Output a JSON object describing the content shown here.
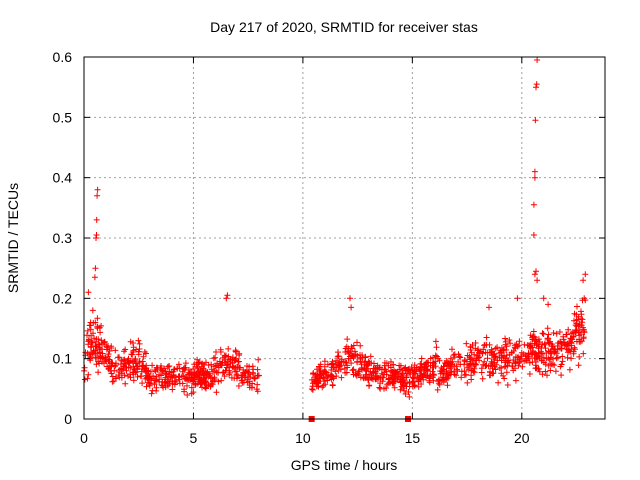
{
  "chart_data": {
    "type": "scatter",
    "title": "Day 217 of 2020, SRMTID for receiver stas",
    "xlabel": "GPS time / hours",
    "ylabel": "SRMTID / TECUs",
    "xlim": [
      0,
      23.8
    ],
    "ylim": [
      0,
      0.6
    ],
    "x_ticks": [
      0,
      5,
      10,
      15,
      20
    ],
    "x_tick_labels": [
      "0",
      "5",
      "10",
      "15",
      "20"
    ],
    "y_ticks": [
      0,
      0.1,
      0.2,
      0.3,
      0.4,
      0.5,
      0.6
    ],
    "y_tick_labels": [
      "0",
      "0.1",
      "0.2",
      "0.3",
      "0.4",
      "0.5",
      "0.6"
    ],
    "grid": true,
    "marker": "+",
    "color": "#ff0000",
    "series": [
      {
        "name": "SRMTID",
        "segments": [
          {
            "t_start": 0.0,
            "t_end": 8.0,
            "baseline": [
              [
                0.0,
                0.1
              ],
              [
                0.3,
                0.12
              ],
              [
                0.6,
                0.13
              ],
              [
                1.0,
                0.1
              ],
              [
                1.5,
                0.08
              ],
              [
                2.0,
                0.09
              ],
              [
                2.5,
                0.1
              ],
              [
                3.0,
                0.07
              ],
              [
                3.5,
                0.07
              ],
              [
                4.0,
                0.07
              ],
              [
                4.5,
                0.07
              ],
              [
                5.0,
                0.07
              ],
              [
                5.5,
                0.07
              ],
              [
                6.0,
                0.08
              ],
              [
                6.5,
                0.1
              ],
              [
                7.0,
                0.09
              ],
              [
                7.5,
                0.07
              ],
              [
                8.0,
                0.07
              ]
            ]
          },
          {
            "t_start": 10.4,
            "t_end": 22.9,
            "baseline": [
              [
                10.4,
                0.06
              ],
              [
                11.0,
                0.07
              ],
              [
                11.5,
                0.08
              ],
              [
                12.0,
                0.11
              ],
              [
                12.5,
                0.1
              ],
              [
                13.0,
                0.08
              ],
              [
                13.5,
                0.07
              ],
              [
                14.0,
                0.07
              ],
              [
                14.5,
                0.07
              ],
              [
                15.0,
                0.07
              ],
              [
                15.5,
                0.08
              ],
              [
                16.0,
                0.09
              ],
              [
                16.5,
                0.08
              ],
              [
                17.0,
                0.09
              ],
              [
                17.5,
                0.09
              ],
              [
                18.0,
                0.1
              ],
              [
                18.5,
                0.1
              ],
              [
                19.0,
                0.1
              ],
              [
                19.5,
                0.1
              ],
              [
                20.0,
                0.1
              ],
              [
                20.5,
                0.11
              ],
              [
                21.0,
                0.11
              ],
              [
                21.5,
                0.11
              ],
              [
                22.0,
                0.12
              ],
              [
                22.5,
                0.14
              ],
              [
                22.9,
                0.16
              ]
            ]
          }
        ],
        "spikes": [
          {
            "x": 0.3,
            "y": 0.16
          },
          {
            "x": 0.4,
            "y": 0.18
          },
          {
            "x": 0.5,
            "y": 0.235
          },
          {
            "x": 0.52,
            "y": 0.25
          },
          {
            "x": 0.55,
            "y": 0.3
          },
          {
            "x": 0.57,
            "y": 0.305
          },
          {
            "x": 0.58,
            "y": 0.33
          },
          {
            "x": 0.6,
            "y": 0.37
          },
          {
            "x": 0.62,
            "y": 0.38
          },
          {
            "x": 0.2,
            "y": 0.21
          },
          {
            "x": 6.5,
            "y": 0.2
          },
          {
            "x": 6.55,
            "y": 0.205
          },
          {
            "x": 12.15,
            "y": 0.2
          },
          {
            "x": 12.2,
            "y": 0.185
          },
          {
            "x": 18.5,
            "y": 0.185
          },
          {
            "x": 19.8,
            "y": 0.2
          },
          {
            "x": 20.55,
            "y": 0.305
          },
          {
            "x": 20.55,
            "y": 0.355
          },
          {
            "x": 20.6,
            "y": 0.4
          },
          {
            "x": 20.6,
            "y": 0.41
          },
          {
            "x": 20.62,
            "y": 0.495
          },
          {
            "x": 20.65,
            "y": 0.55
          },
          {
            "x": 20.68,
            "y": 0.555
          },
          {
            "x": 20.7,
            "y": 0.595
          },
          {
            "x": 20.6,
            "y": 0.24
          },
          {
            "x": 20.65,
            "y": 0.245
          },
          {
            "x": 20.7,
            "y": 0.23
          },
          {
            "x": 21.0,
            "y": 0.2
          },
          {
            "x": 21.2,
            "y": 0.19
          },
          {
            "x": 22.8,
            "y": 0.23
          },
          {
            "x": 22.9,
            "y": 0.24
          },
          {
            "x": 22.85,
            "y": 0.2
          }
        ],
        "zero_markers": [
          {
            "x": 10.4,
            "y": 0.0
          },
          {
            "x": 14.8,
            "y": 0.0
          }
        ]
      }
    ]
  }
}
